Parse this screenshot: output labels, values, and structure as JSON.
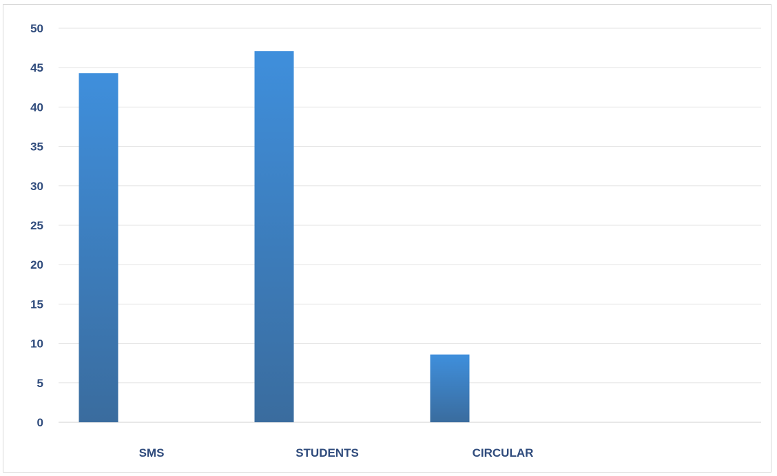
{
  "chart_data": {
    "type": "bar",
    "categories": [
      "SMS",
      "STUDENTS",
      "CIRCULAR"
    ],
    "values": [
      44.3,
      47.1,
      8.6
    ],
    "ylim": [
      0,
      50
    ],
    "yticks": [
      0,
      5,
      10,
      15,
      20,
      25,
      30,
      35,
      40,
      45,
      50
    ],
    "grid": true,
    "legend": "none",
    "colors": {
      "bar_top": "#3f8fdc",
      "bar_bottom": "#3a6c9e",
      "tick_text": "#2f4b7c",
      "grid": "#e3e3e3"
    }
  }
}
